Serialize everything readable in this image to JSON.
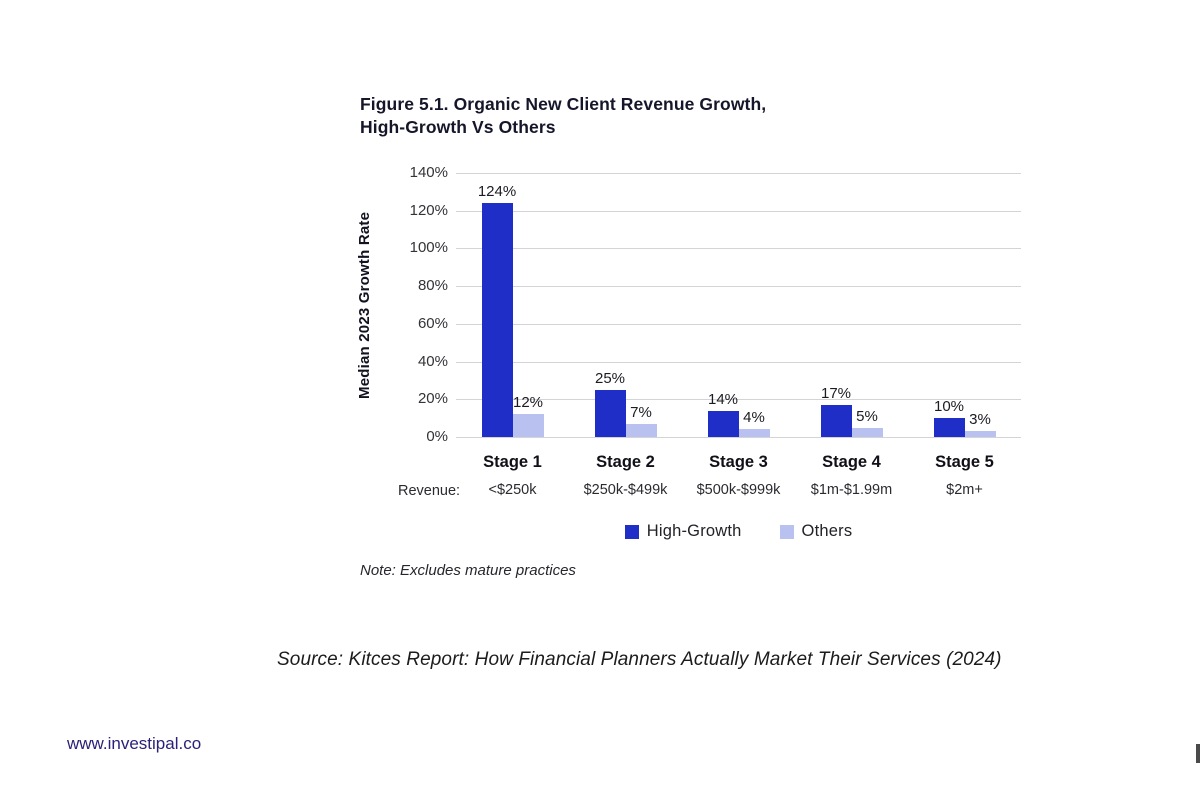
{
  "figure": {
    "title_line1": "Figure 5.1. Organic New Client Revenue Growth,",
    "title_line2": "High-Growth Vs Others",
    "note": "Note: Excludes mature practices",
    "revenue_row_label": "Revenue:"
  },
  "footer": {
    "source": "Source: Kitces Report: How Financial Planners Actually Market Their Services (2024)",
    "website": "www.investipal.co"
  },
  "chart_data": {
    "type": "bar",
    "title": "Figure 5.1. Organic New Client Revenue Growth, High-Growth Vs Others",
    "ylabel": "Median 2023 Growth Rate",
    "ylim": [
      0,
      140
    ],
    "yticks_percent": [
      140,
      120,
      100,
      80,
      60,
      40,
      20,
      0
    ],
    "grid": true,
    "legend_position": "bottom",
    "categories": [
      "Stage 1",
      "Stage 2",
      "Stage 3",
      "Stage 4",
      "Stage 5"
    ],
    "revenue_labels": [
      "<$250k",
      "$250k-$499k",
      "$500k-$999k",
      "$1m-$1.99m",
      "$2m+"
    ],
    "series": [
      {
        "name": "High-Growth",
        "color": "#1f2ec6",
        "values": [
          124,
          25,
          14,
          17,
          10
        ]
      },
      {
        "name": "Others",
        "color": "#b9c1f0",
        "values": [
          12,
          7,
          4,
          5,
          3
        ]
      }
    ],
    "value_label_suffix": "%",
    "note": "Excludes mature practices",
    "gridline_color": "#d4d4d6"
  }
}
